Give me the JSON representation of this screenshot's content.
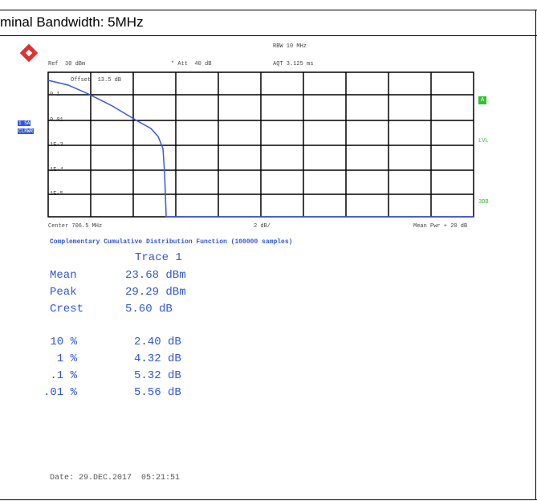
{
  "header": {
    "title": "minal Bandwidth: 5MHz"
  },
  "screen": {
    "top_labels": [
      "Ref  30 dBm",
      "* Att  40 dB",
      "RBW 10 MHz",
      "AQT 3.125 ms"
    ],
    "offset": "Offset  13.5 dB",
    "y_labels": [
      "0.1",
      "0.01",
      "1E-3",
      "1E-4",
      "1E-5"
    ],
    "left_tags": [
      "1 SA",
      "CLRWR"
    ],
    "right_tags": [
      "A",
      "LVL",
      "3DB"
    ],
    "bottom_labels": [
      "Center 706.5 MHz",
      "2 dB/",
      "Mean Pwr + 20 dB"
    ]
  },
  "results": {
    "title": "Complementary Cumulative Distribution Function (100000 samples)",
    "trace": "Trace 1",
    "stats": [
      [
        "Mean",
        "23.68 dBm"
      ],
      [
        "Peak",
        "29.29 dBm"
      ],
      [
        "Crest",
        "5.60 dB"
      ]
    ],
    "percentiles": [
      [
        "10 %",
        "2.40 dB"
      ],
      [
        "1 %",
        "4.32 dB"
      ],
      [
        ".1 %",
        "5.32 dB"
      ],
      [
        ".01 %",
        "5.56 dB"
      ]
    ],
    "date": "Date: 29.DEC.2017  05:21:51"
  }
}
